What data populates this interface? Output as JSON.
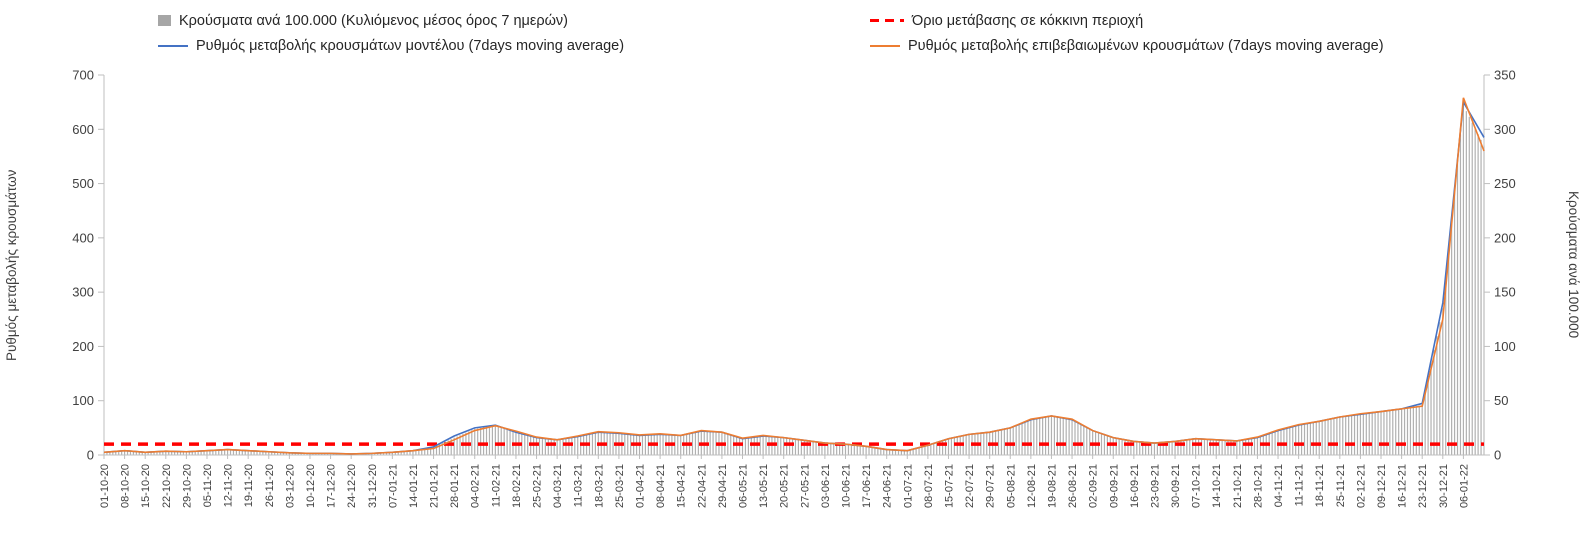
{
  "legend": {
    "items": [
      {
        "label": "Κρούσματα ανά 100.000 (Κυλιόμενος μέσος όρος 7 ημερών)",
        "swatch": "bar",
        "color": "#a6a6a6"
      },
      {
        "label": "Όριο μετάβασης σε κόκκινη περιοχή",
        "swatch": "dashed-line",
        "color": "#ff0000"
      },
      {
        "label": "Ρυθμός μεταβολής κρουσμάτων μοντέλου (7days moving average)",
        "swatch": "line",
        "color": "#4472c4"
      },
      {
        "label": "Ρυθμός μεταβολής επιβεβαιωμένων κρουσμάτων (7days moving average)",
        "swatch": "line",
        "color": "#ed7d31"
      }
    ]
  },
  "chart_data": {
    "type": "combo",
    "x_labels": [
      "01-10-20",
      "08-10-20",
      "15-10-20",
      "22-10-20",
      "29-10-20",
      "05-11-20",
      "12-11-20",
      "19-11-20",
      "26-11-20",
      "03-12-20",
      "10-12-20",
      "17-12-20",
      "24-12-20",
      "31-12-20",
      "07-01-21",
      "14-01-21",
      "21-01-21",
      "28-01-21",
      "04-02-21",
      "11-02-21",
      "18-02-21",
      "25-02-21",
      "04-03-21",
      "11-03-21",
      "18-03-21",
      "25-03-21",
      "01-04-21",
      "08-04-21",
      "15-04-21",
      "22-04-21",
      "29-04-21",
      "06-05-21",
      "13-05-21",
      "20-05-21",
      "27-05-21",
      "03-06-21",
      "10-06-21",
      "17-06-21",
      "24-06-21",
      "01-07-21",
      "08-07-21",
      "15-07-21",
      "22-07-21",
      "29-07-21",
      "05-08-21",
      "12-08-21",
      "19-08-21",
      "26-08-21",
      "02-09-21",
      "09-09-21",
      "16-09-21",
      "23-09-21",
      "30-09-21",
      "07-10-21",
      "14-10-21",
      "21-10-21",
      "28-10-21",
      "04-11-21",
      "11-11-21",
      "18-11-21",
      "25-11-21",
      "02-12-21",
      "09-12-21",
      "16-12-21",
      "23-12-21",
      "30-12-21",
      "06-01-22"
    ],
    "note": "series value arrays contain one extra unlabeled end point visible at the right edge of the plot",
    "series": [
      {
        "name": "Κρούσματα ανά 100.000 (Κυλιόμενος μέσος όρος 7 ημερών)",
        "type": "bar",
        "axis": "right",
        "color": "#b0b0b0",
        "values": [
          2.5,
          4,
          2.5,
          3.5,
          3,
          4,
          5,
          4,
          3,
          2,
          1.5,
          1.5,
          1,
          1.5,
          2.5,
          4,
          7,
          16,
          24,
          27,
          21,
          16,
          14,
          17,
          21,
          20,
          18,
          19,
          18,
          22,
          21,
          15,
          17.5,
          16,
          13.5,
          11,
          10,
          8,
          5,
          4,
          9,
          15,
          19,
          21,
          25,
          33,
          36,
          33,
          22,
          16,
          12.5,
          11,
          12.5,
          15,
          14,
          13,
          16,
          22.5,
          27.5,
          31,
          35,
          38,
          40,
          42.5,
          46,
          135,
          322,
          285
        ]
      },
      {
        "name": "Ρυθμός μεταβολής κρουσμάτων μοντέλου (7days moving average)",
        "type": "line",
        "axis": "left",
        "color": "#4472c4",
        "values": [
          5,
          8,
          5,
          7,
          6,
          8,
          10,
          8,
          6,
          4,
          3,
          3,
          2,
          3,
          5,
          8,
          15,
          35,
          50,
          55,
          42,
          32,
          28,
          34,
          42,
          40,
          36,
          38,
          36,
          44,
          42,
          30,
          35,
          32,
          27,
          22,
          20,
          16,
          10,
          8,
          18,
          30,
          38,
          42,
          50,
          65,
          72,
          65,
          45,
          32,
          25,
          22,
          25,
          30,
          28,
          26,
          32,
          45,
          55,
          62,
          70,
          75,
          80,
          85,
          95,
          280,
          650,
          585
        ]
      },
      {
        "name": "Ρυθμός μεταβολής επιβεβαιωμένων κρουσμάτων (7days moving average)",
        "type": "line",
        "axis": "left",
        "color": "#ed7d31",
        "values": [
          5,
          8,
          5,
          7,
          6,
          8,
          10,
          8,
          6,
          4,
          3,
          3,
          2,
          3,
          5,
          8,
          12,
          28,
          45,
          54,
          44,
          33,
          28,
          35,
          43,
          41,
          37,
          39,
          36,
          45,
          42,
          31,
          36,
          32,
          27,
          22,
          20,
          16,
          10,
          8,
          18,
          30,
          38,
          42,
          50,
          66,
          72,
          66,
          45,
          32,
          25,
          22,
          25,
          30,
          28,
          26,
          33,
          46,
          56,
          62,
          70,
          76,
          80,
          85,
          90,
          250,
          658,
          560
        ]
      }
    ],
    "threshold": {
      "name": "Όριο μετάβασης σε κόκκινη περιοχή",
      "axis": "left",
      "value": 20,
      "value_right_axis": 10,
      "color": "#ff0000",
      "style": "dashed"
    },
    "left_axis": {
      "title": "Ρυθμός μεταβολής κρουσμάτων",
      "min": 0,
      "max": 700,
      "step": 100,
      "ticks": [
        0,
        100,
        200,
        300,
        400,
        500,
        600,
        700
      ]
    },
    "right_axis": {
      "title": "Κρούσματα ανά 100.000",
      "min": 0,
      "max": 350,
      "step": 50,
      "ticks": [
        0,
        50,
        100,
        150,
        200,
        250,
        300,
        350
      ]
    },
    "grid": false,
    "legend_position": "top"
  }
}
